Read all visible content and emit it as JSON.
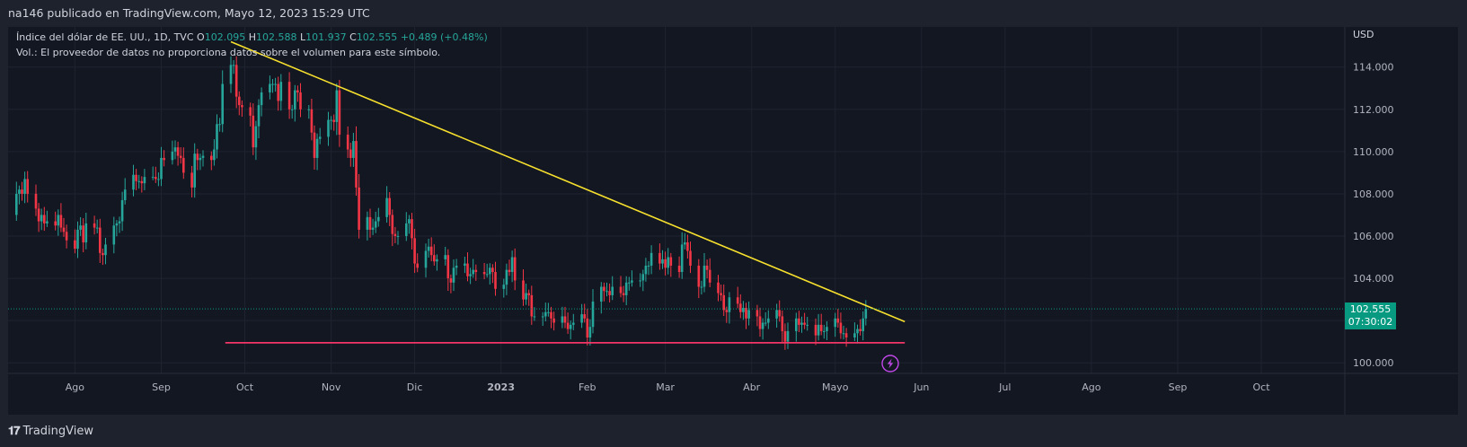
{
  "header": {
    "publish_line": "na146 publicado en TradingView.com, Mayo 12, 2023 15:29 UTC"
  },
  "legend": {
    "symbol": "Índice del dólar de EE. UU., 1D, TVC",
    "o_label": "O",
    "o_value": "102.095",
    "h_label": "H",
    "h_value": "102.588",
    "l_label": "L",
    "l_value": "101.937",
    "c_label": "C",
    "c_value": "102.555",
    "change": "+0.489 (+0.48%)",
    "volume_note": "Vol.: El proveedor de datos no proporciona datos sobre el volumen para este símbolo."
  },
  "price_tag": {
    "price": "102.555",
    "countdown": "07:30:02"
  },
  "footer": {
    "brand": "TradingView",
    "logo_glyph": "𝟏𝟕"
  },
  "colors": {
    "up": "#26a69a",
    "down": "#f23645",
    "trendline": "#f7e02d",
    "support": "#f23668",
    "tag": "#089981"
  },
  "chart_data": {
    "type": "candlestick",
    "currency_label": "USD",
    "y_ticks": [
      "100.000",
      "102.000",
      "104.000",
      "106.000",
      "108.000",
      "110.000",
      "112.000",
      "114.000"
    ],
    "ylim": [
      99.5,
      115.9
    ],
    "x_ticks": [
      {
        "label": "Ago",
        "x": "2022-08-01"
      },
      {
        "label": "Sep",
        "x": "2022-09-01"
      },
      {
        "label": "Oct",
        "x": "2022-10-01"
      },
      {
        "label": "Nov",
        "x": "2022-11-01"
      },
      {
        "label": "Dic",
        "x": "2022-12-01"
      },
      {
        "label": "2023",
        "x": "2023-01-01"
      },
      {
        "label": "Feb",
        "x": "2023-02-01"
      },
      {
        "label": "Mar",
        "x": "2023-03-01"
      },
      {
        "label": "Abr",
        "x": "2023-04-01"
      },
      {
        "label": "Mayo",
        "x": "2023-05-01"
      },
      {
        "label": "Jun",
        "x": "2023-06-01"
      },
      {
        "label": "Jul",
        "x": "2023-07-01"
      },
      {
        "label": "Ago",
        "x": "2023-08-01"
      },
      {
        "label": "Sep",
        "x": "2023-09-01"
      },
      {
        "label": "Oct",
        "x": "2023-10-01"
      }
    ],
    "xlim": [
      "2022-07-08",
      "2023-10-31"
    ],
    "last_price": 102.555,
    "closes": [
      [
        "2022-07-08",
        107.0
      ],
      [
        "2022-07-11",
        108.0
      ],
      [
        "2022-07-12",
        108.2
      ],
      [
        "2022-07-13",
        108.0
      ],
      [
        "2022-07-14",
        108.7
      ],
      [
        "2022-07-15",
        108.0
      ],
      [
        "2022-07-18",
        107.3
      ],
      [
        "2022-07-19",
        106.7
      ],
      [
        "2022-07-20",
        107.0
      ],
      [
        "2022-07-21",
        106.6
      ],
      [
        "2022-07-22",
        106.7
      ],
      [
        "2022-07-25",
        106.5
      ],
      [
        "2022-07-26",
        107.0
      ],
      [
        "2022-07-27",
        106.4
      ],
      [
        "2022-07-28",
        106.2
      ],
      [
        "2022-07-29",
        105.8
      ],
      [
        "2022-08-01",
        105.4
      ],
      [
        "2022-08-02",
        106.3
      ],
      [
        "2022-08-03",
        106.5
      ],
      [
        "2022-08-04",
        105.7
      ],
      [
        "2022-08-05",
        106.6
      ],
      [
        "2022-08-08",
        106.4
      ],
      [
        "2022-08-09",
        106.4
      ],
      [
        "2022-08-10",
        105.2
      ],
      [
        "2022-08-11",
        105.1
      ],
      [
        "2022-08-12",
        105.6
      ],
      [
        "2022-08-15",
        106.5
      ],
      [
        "2022-08-16",
        106.6
      ],
      [
        "2022-08-17",
        106.7
      ],
      [
        "2022-08-18",
        107.7
      ],
      [
        "2022-08-19",
        108.2
      ],
      [
        "2022-08-22",
        108.9
      ],
      [
        "2022-08-23",
        108.6
      ],
      [
        "2022-08-24",
        108.6
      ],
      [
        "2022-08-25",
        108.5
      ],
      [
        "2022-08-26",
        108.8
      ],
      [
        "2022-08-29",
        108.8
      ],
      [
        "2022-08-30",
        108.7
      ],
      [
        "2022-08-31",
        108.7
      ],
      [
        "2022-09-01",
        109.7
      ],
      [
        "2022-09-02",
        109.6
      ],
      [
        "2022-09-05",
        110.0
      ],
      [
        "2022-09-06",
        110.2
      ],
      [
        "2022-09-07",
        109.8
      ],
      [
        "2022-09-08",
        109.7
      ],
      [
        "2022-09-09",
        109.0
      ],
      [
        "2022-09-12",
        108.3
      ],
      [
        "2022-09-13",
        109.9
      ],
      [
        "2022-09-14",
        109.6
      ],
      [
        "2022-09-15",
        109.7
      ],
      [
        "2022-09-16",
        109.8
      ],
      [
        "2022-09-19",
        109.6
      ],
      [
        "2022-09-20",
        110.1
      ],
      [
        "2022-09-21",
        111.3
      ],
      [
        "2022-09-22",
        111.3
      ],
      [
        "2022-09-23",
        113.2
      ],
      [
        "2022-09-26",
        114.1
      ],
      [
        "2022-09-27",
        114.1
      ],
      [
        "2022-09-28",
        112.6
      ],
      [
        "2022-09-29",
        112.2
      ],
      [
        "2022-09-30",
        112.1
      ],
      [
        "2022-10-03",
        111.7
      ],
      [
        "2022-10-04",
        110.2
      ],
      [
        "2022-10-05",
        111.2
      ],
      [
        "2022-10-06",
        112.2
      ],
      [
        "2022-10-07",
        112.8
      ],
      [
        "2022-10-10",
        113.2
      ],
      [
        "2022-10-11",
        113.2
      ],
      [
        "2022-10-12",
        113.2
      ],
      [
        "2022-10-13",
        112.4
      ],
      [
        "2022-10-14",
        113.3
      ],
      [
        "2022-10-17",
        112.0
      ],
      [
        "2022-10-18",
        112.0
      ],
      [
        "2022-10-19",
        112.9
      ],
      [
        "2022-10-20",
        112.8
      ],
      [
        "2022-10-21",
        112.0
      ],
      [
        "2022-10-24",
        112.0
      ],
      [
        "2022-10-25",
        110.9
      ],
      [
        "2022-10-26",
        109.7
      ],
      [
        "2022-10-27",
        110.6
      ],
      [
        "2022-10-28",
        110.7
      ],
      [
        "2022-10-31",
        111.5
      ],
      [
        "2022-11-01",
        111.5
      ],
      [
        "2022-11-02",
        111.4
      ],
      [
        "2022-11-03",
        112.9
      ],
      [
        "2022-11-04",
        110.8
      ],
      [
        "2022-11-07",
        110.1
      ],
      [
        "2022-11-08",
        109.7
      ],
      [
        "2022-11-09",
        110.5
      ],
      [
        "2022-11-10",
        108.3
      ],
      [
        "2022-11-11",
        106.3
      ],
      [
        "2022-11-14",
        106.9
      ],
      [
        "2022-11-15",
        106.3
      ],
      [
        "2022-11-16",
        106.4
      ],
      [
        "2022-11-17",
        106.7
      ],
      [
        "2022-11-18",
        106.9
      ],
      [
        "2022-11-21",
        107.8
      ],
      [
        "2022-11-22",
        107.0
      ],
      [
        "2022-11-23",
        106.1
      ],
      [
        "2022-11-24",
        106.0
      ],
      [
        "2022-11-25",
        106.0
      ],
      [
        "2022-11-28",
        106.6
      ],
      [
        "2022-11-29",
        106.8
      ],
      [
        "2022-11-30",
        105.9
      ],
      [
        "2022-12-01",
        104.7
      ],
      [
        "2022-12-02",
        104.5
      ],
      [
        "2022-12-05",
        105.3
      ],
      [
        "2022-12-06",
        105.5
      ],
      [
        "2022-12-07",
        105.1
      ],
      [
        "2022-12-08",
        104.8
      ],
      [
        "2022-12-09",
        104.9
      ],
      [
        "2022-12-12",
        105.1
      ],
      [
        "2022-12-13",
        104.0
      ],
      [
        "2022-12-14",
        103.8
      ],
      [
        "2022-12-15",
        104.5
      ],
      [
        "2022-12-16",
        104.6
      ],
      [
        "2022-12-19",
        104.7
      ],
      [
        "2022-12-20",
        104.1
      ],
      [
        "2022-12-21",
        104.2
      ],
      [
        "2022-12-22",
        104.4
      ],
      [
        "2022-12-23",
        104.3
      ],
      [
        "2022-12-26",
        104.2
      ],
      [
        "2022-12-27",
        104.2
      ],
      [
        "2022-12-28",
        104.5
      ],
      [
        "2022-12-29",
        104.3
      ],
      [
        "2022-12-30",
        103.5
      ],
      [
        "2023-01-02",
        103.7
      ],
      [
        "2023-01-03",
        104.4
      ],
      [
        "2023-01-04",
        104.3
      ],
      [
        "2023-01-05",
        105.0
      ],
      [
        "2023-01-06",
        103.9
      ],
      [
        "2023-01-09",
        103.0
      ],
      [
        "2023-01-10",
        103.3
      ],
      [
        "2023-01-11",
        103.2
      ],
      [
        "2023-01-12",
        102.2
      ],
      [
        "2023-01-13",
        102.2
      ],
      [
        "2023-01-16",
        102.2
      ],
      [
        "2023-01-17",
        102.4
      ],
      [
        "2023-01-18",
        102.4
      ],
      [
        "2023-01-19",
        102.1
      ],
      [
        "2023-01-20",
        101.9
      ],
      [
        "2023-01-23",
        102.2
      ],
      [
        "2023-01-24",
        101.9
      ],
      [
        "2023-01-25",
        101.6
      ],
      [
        "2023-01-26",
        101.8
      ],
      [
        "2023-01-27",
        101.9
      ],
      [
        "2023-01-30",
        102.3
      ],
      [
        "2023-01-31",
        102.1
      ],
      [
        "2023-02-01",
        101.2
      ],
      [
        "2023-02-02",
        101.7
      ],
      [
        "2023-02-03",
        102.9
      ],
      [
        "2023-02-06",
        103.6
      ],
      [
        "2023-02-07",
        103.4
      ],
      [
        "2023-02-08",
        103.4
      ],
      [
        "2023-02-09",
        103.2
      ],
      [
        "2023-02-10",
        103.6
      ],
      [
        "2023-02-13",
        103.3
      ],
      [
        "2023-02-14",
        103.2
      ],
      [
        "2023-02-15",
        103.8
      ],
      [
        "2023-02-16",
        103.8
      ],
      [
        "2023-02-17",
        103.9
      ],
      [
        "2023-02-20",
        103.9
      ],
      [
        "2023-02-21",
        104.2
      ],
      [
        "2023-02-22",
        104.6
      ],
      [
        "2023-02-23",
        104.6
      ],
      [
        "2023-02-24",
        105.2
      ],
      [
        "2023-02-27",
        104.7
      ],
      [
        "2023-02-28",
        104.9
      ],
      [
        "2023-03-01",
        104.5
      ],
      [
        "2023-03-02",
        105.0
      ],
      [
        "2023-03-03",
        104.6
      ],
      [
        "2023-03-06",
        104.3
      ],
      [
        "2023-03-07",
        105.6
      ],
      [
        "2023-03-08",
        105.7
      ],
      [
        "2023-03-09",
        105.3
      ],
      [
        "2023-03-10",
        104.6
      ],
      [
        "2023-03-13",
        103.6
      ],
      [
        "2023-03-14",
        103.6
      ],
      [
        "2023-03-15",
        104.6
      ],
      [
        "2023-03-16",
        104.4
      ],
      [
        "2023-03-17",
        103.8
      ],
      [
        "2023-03-20",
        103.3
      ],
      [
        "2023-03-21",
        103.2
      ],
      [
        "2023-03-22",
        102.5
      ],
      [
        "2023-03-23",
        102.4
      ],
      [
        "2023-03-24",
        103.1
      ],
      [
        "2023-03-27",
        102.8
      ],
      [
        "2023-03-28",
        102.4
      ],
      [
        "2023-03-29",
        102.6
      ],
      [
        "2023-03-30",
        102.1
      ],
      [
        "2023-03-31",
        102.5
      ],
      [
        "2023-04-03",
        102.2
      ],
      [
        "2023-04-04",
        101.6
      ],
      [
        "2023-04-05",
        101.9
      ],
      [
        "2023-04-06",
        101.9
      ],
      [
        "2023-04-07",
        102.1
      ],
      [
        "2023-04-10",
        102.5
      ],
      [
        "2023-04-11",
        102.2
      ],
      [
        "2023-04-12",
        101.5
      ],
      [
        "2023-04-13",
        101.0
      ],
      [
        "2023-04-14",
        101.5
      ],
      [
        "2023-04-17",
        102.1
      ],
      [
        "2023-04-18",
        101.8
      ],
      [
        "2023-04-19",
        101.9
      ],
      [
        "2023-04-20",
        101.8
      ],
      [
        "2023-04-21",
        101.8
      ],
      [
        "2023-04-24",
        101.3
      ],
      [
        "2023-04-25",
        101.8
      ],
      [
        "2023-04-26",
        101.5
      ],
      [
        "2023-04-27",
        101.5
      ],
      [
        "2023-04-28",
        101.7
      ],
      [
        "2023-05-01",
        102.1
      ],
      [
        "2023-05-02",
        101.9
      ],
      [
        "2023-05-03",
        101.4
      ],
      [
        "2023-05-04",
        101.4
      ],
      [
        "2023-05-05",
        101.2
      ],
      [
        "2023-05-08",
        101.4
      ],
      [
        "2023-05-09",
        101.6
      ],
      [
        "2023-05-10",
        101.5
      ],
      [
        "2023-05-11",
        102.1
      ],
      [
        "2023-05-12",
        102.555
      ]
    ],
    "drawings": {
      "trendline": {
        "from": [
          "2022-09-26",
          115.2
        ],
        "to": [
          "2023-05-26",
          101.95
        ]
      },
      "support": {
        "from": [
          "2022-09-24",
          100.95
        ],
        "to": [
          "2023-05-26",
          100.95
        ]
      }
    }
  }
}
